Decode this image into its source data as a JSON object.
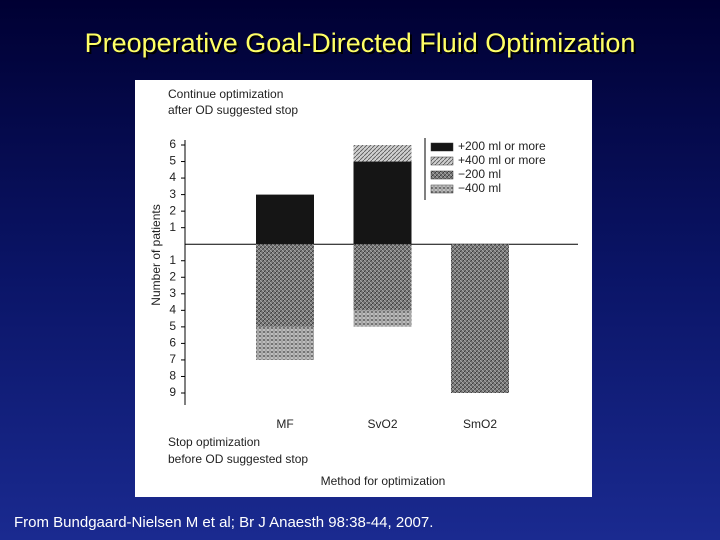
{
  "title": "Preoperative Goal-Directed Fluid Optimization",
  "footer": "From Bundgaard-Nielsen M et al; Br J Anaesth 98:38-44, 2007.",
  "chart_data": {
    "type": "bar",
    "stacked": true,
    "y_label": "Number of patients",
    "x_label": "Method for optimization",
    "annotations": {
      "top": [
        "Continue optimization",
        "after OD suggested stop"
      ],
      "bottom": [
        "Stop optimization",
        "before OD suggested stop"
      ]
    },
    "categories": [
      "MF",
      "SvO2",
      "SmO2"
    ],
    "series": [
      {
        "name": "+200 ml or more",
        "color": "#151515",
        "values": [
          3,
          5,
          0
        ]
      },
      {
        "name": "+400 ml or more",
        "color": "#d0d0d0",
        "values": [
          0,
          1,
          0
        ]
      },
      {
        "name": "−200 ml",
        "color": "#7a7a7a",
        "values": [
          -5,
          -4,
          -9
        ]
      },
      {
        "name": "−400 ml",
        "color": "#b8b8b8",
        "values": [
          -2,
          -1,
          0
        ]
      }
    ],
    "ylim": [
      -9,
      6
    ],
    "yticks": [
      {
        "value": -9,
        "label": "9"
      },
      {
        "value": -8,
        "label": "8"
      },
      {
        "value": -7,
        "label": "7"
      },
      {
        "value": -6,
        "label": "6"
      },
      {
        "value": -5,
        "label": "5"
      },
      {
        "value": -4,
        "label": "4"
      },
      {
        "value": -3,
        "label": "3"
      },
      {
        "value": -2,
        "label": "2"
      },
      {
        "value": -1,
        "label": "1"
      },
      1,
      2,
      3,
      4,
      5,
      6
    ],
    "legend": "upper right"
  }
}
